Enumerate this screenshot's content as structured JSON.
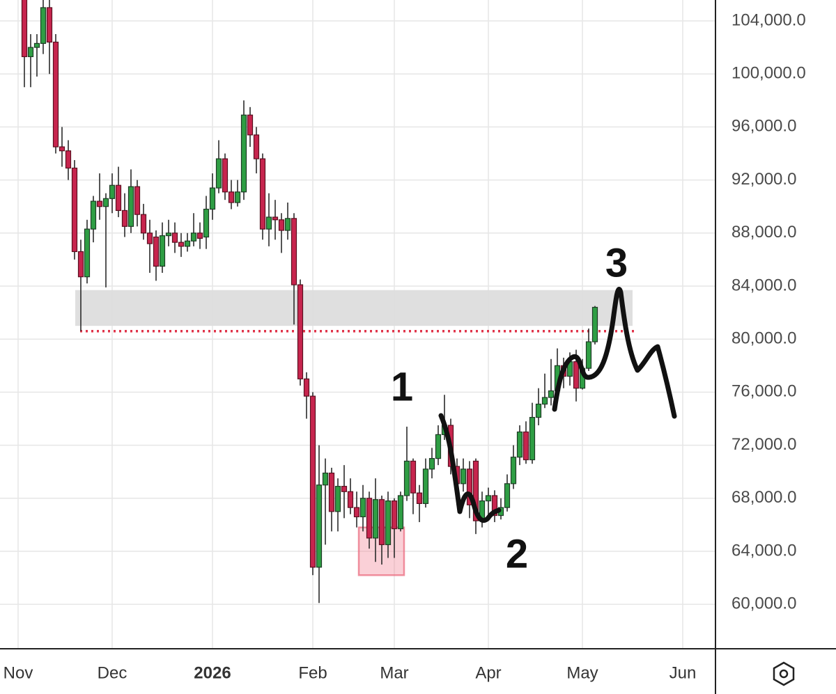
{
  "chart_data": {
    "type": "candlestick",
    "categories": [
      "Nov",
      null,
      null,
      null,
      null,
      null,
      null,
      null,
      null,
      null,
      null,
      null,
      null,
      null,
      null,
      "Dec",
      null,
      null,
      null,
      null,
      null,
      null,
      null,
      null,
      null,
      null,
      null,
      null,
      null,
      null,
      null,
      "2026",
      null,
      null,
      null,
      null,
      null,
      null,
      null,
      null,
      null,
      null,
      null,
      null,
      null,
      null,
      null,
      "Feb",
      null,
      null,
      null,
      null,
      null,
      null,
      null,
      null,
      null,
      null,
      null,
      null,
      "Mar",
      null,
      null,
      null,
      null,
      null,
      null,
      null,
      null,
      null,
      null,
      null,
      null,
      null,
      null,
      "Apr",
      null,
      null,
      null,
      null,
      null,
      null,
      null,
      null,
      null,
      null,
      null,
      null,
      null,
      null,
      "May",
      null,
      null,
      null,
      null,
      null,
      null,
      null,
      null,
      null,
      null,
      null,
      null,
      null,
      null,
      null,
      "Jun"
    ],
    "ohlc": {
      "open": [
        null,
        106000,
        101300,
        102000,
        102300,
        105000,
        102400,
        94500,
        94200,
        92900,
        86600,
        84700,
        88300,
        90400,
        90000,
        90600,
        91600,
        89700,
        88500,
        91500,
        89400,
        88000,
        87700,
        85500,
        87800,
        88000,
        87300,
        87000,
        87400,
        88000,
        87700,
        89800,
        91400,
        93600,
        91100,
        90300,
        91100,
        96900,
        95400,
        93600,
        88300,
        89200,
        89000,
        88200,
        89100,
        84100,
        77000,
        75700,
        62800,
        69000,
        69900,
        67000,
        68900,
        68500,
        67300,
        66600,
        68000,
        65000,
        67900,
        64500,
        67800,
        65700,
        68200,
        70800,
        68400,
        67600,
        70200,
        71000,
        72800,
        73500,
        70400,
        69100,
        70200,
        70800,
        66300,
        67800,
        68200,
        66700,
        67300,
        69100,
        71100,
        73000,
        70900,
        74100,
        75100,
        75600,
        76100,
        78000,
        77200,
        78300,
        76300,
        77800,
        79800,
        null,
        null,
        null,
        null,
        null,
        null,
        null,
        null,
        null,
        null,
        null,
        null,
        null,
        null
      ],
      "high": [
        null,
        107000,
        103000,
        103000,
        107000,
        107000,
        103000,
        96000,
        95000,
        93500,
        87500,
        89000,
        90800,
        92500,
        91000,
        92500,
        93000,
        91000,
        92800,
        92000,
        90200,
        89000,
        88200,
        88800,
        89000,
        88800,
        88000,
        88000,
        89500,
        88800,
        90800,
        92500,
        95000,
        94000,
        92000,
        92000,
        98000,
        97500,
        96000,
        94000,
        91000,
        90500,
        89500,
        90300,
        89500,
        84500,
        77500,
        76000,
        72000,
        71000,
        70300,
        69500,
        70500,
        69500,
        68500,
        69000,
        68500,
        69500,
        68200,
        68500,
        68000,
        68500,
        73400,
        71000,
        69000,
        71000,
        71800,
        73500,
        75800,
        74000,
        71000,
        71000,
        70800,
        71000,
        68500,
        68800,
        68600,
        68000,
        69800,
        72000,
        73500,
        73800,
        75200,
        76300,
        77400,
        78500,
        79300,
        78600,
        79000,
        79200,
        78500,
        80800,
        82500,
        null,
        null,
        null,
        null,
        null,
        null,
        null,
        null,
        null,
        null,
        null,
        null,
        null,
        null
      ],
      "low": [
        null,
        99000,
        99000,
        99800,
        101500,
        100000,
        94000,
        93000,
        92000,
        86000,
        80600,
        84200,
        87300,
        89000,
        83900,
        89500,
        89200,
        87700,
        88000,
        88500,
        87500,
        85000,
        84400,
        85000,
        87000,
        86500,
        86200,
        86600,
        87000,
        86800,
        86800,
        89000,
        91000,
        90500,
        89800,
        90000,
        90500,
        94500,
        92500,
        87500,
        87000,
        87500,
        86500,
        87500,
        81100,
        76500,
        74000,
        62200,
        60100,
        64500,
        65500,
        65500,
        66500,
        66800,
        65800,
        65500,
        64200,
        63200,
        63000,
        63500,
        63500,
        65500,
        67800,
        66800,
        66200,
        67300,
        69500,
        70500,
        72400,
        69800,
        67500,
        68500,
        66500,
        65300,
        65800,
        66600,
        66200,
        66400,
        67000,
        68700,
        70500,
        70600,
        70600,
        73500,
        74800,
        75000,
        75500,
        76300,
        76500,
        75300,
        76200,
        77600,
        79600,
        null,
        null,
        null,
        null,
        null,
        null,
        null,
        null,
        null,
        null,
        null,
        null,
        null,
        null
      ],
      "close": [
        null,
        101300,
        102000,
        102300,
        105000,
        102400,
        94500,
        94200,
        92900,
        86600,
        84700,
        88300,
        90400,
        90000,
        90600,
        91600,
        89700,
        88500,
        91500,
        89400,
        88000,
        87200,
        85500,
        87800,
        88000,
        87300,
        87000,
        87400,
        88000,
        87600,
        89800,
        91400,
        93600,
        91100,
        90300,
        91100,
        96900,
        95400,
        93600,
        88300,
        89200,
        89000,
        88200,
        89100,
        84100,
        77000,
        75700,
        62800,
        69000,
        69900,
        67000,
        68900,
        68500,
        67300,
        66600,
        68000,
        65000,
        67900,
        64500,
        67800,
        65700,
        68200,
        70800,
        68400,
        67600,
        70200,
        71000,
        72800,
        73500,
        70400,
        69100,
        70200,
        67500,
        66300,
        67800,
        68200,
        66700,
        67300,
        69100,
        71100,
        73000,
        70900,
        74100,
        75100,
        75600,
        76100,
        78000,
        77200,
        78300,
        76300,
        77800,
        79800,
        82400,
        null,
        null,
        null,
        null,
        null,
        null,
        null,
        null,
        null,
        null,
        null,
        null,
        null,
        null
      ]
    },
    "up_color": "#2f9e44",
    "down_color": "#c7254e",
    "ylim": [
      56650,
      105575
    ],
    "yticks": [
      {
        "value": 60000,
        "label": "60,000.0"
      },
      {
        "value": 64000,
        "label": "64,000.0"
      },
      {
        "value": 68000,
        "label": "68,000.0"
      },
      {
        "value": 72000,
        "label": "72,000.0"
      },
      {
        "value": 76000,
        "label": "76,000.0"
      },
      {
        "value": 80000,
        "label": "80,000.0"
      },
      {
        "value": 84000,
        "label": "84,000.0"
      },
      {
        "value": 88000,
        "label": "88,000.0"
      },
      {
        "value": 92000,
        "label": "92,000.0"
      },
      {
        "value": 96000,
        "label": "96,000.0"
      },
      {
        "value": 100000,
        "label": "100,000.0"
      },
      {
        "value": 104000,
        "label": "104,000.0"
      }
    ],
    "grid": true,
    "resistance_zone": [
      81000,
      83700
    ],
    "support_level": 80600,
    "highlight_zone": [
      62200,
      65800
    ],
    "annotations": [
      "1",
      "2",
      "3"
    ]
  }
}
